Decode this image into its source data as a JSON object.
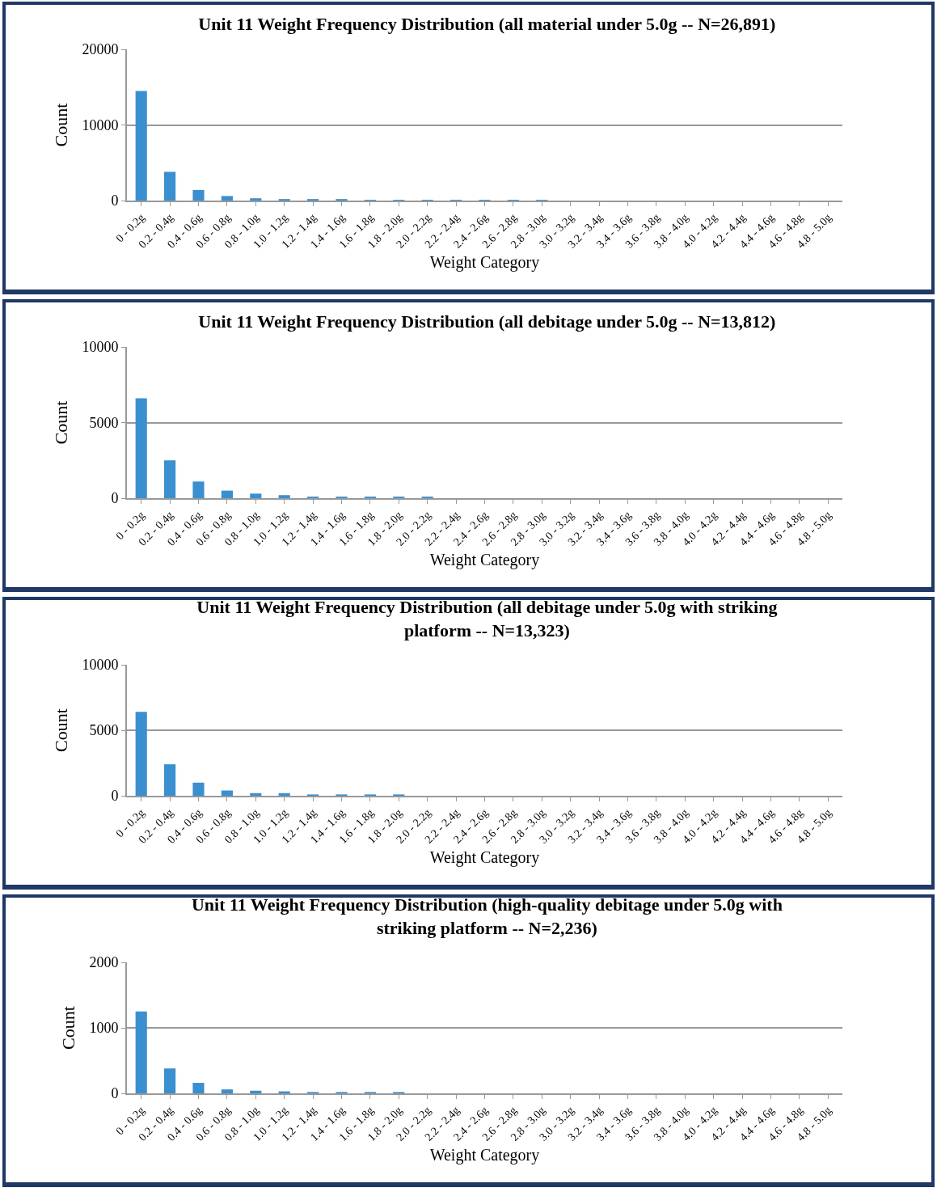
{
  "chart_data": [
    {
      "type": "bar",
      "title": "Unit 11 Weight Frequency Distribution (all material under 5.0g -- N=26,891)",
      "xlabel": "Weight Category",
      "ylabel": "Count",
      "categories": [
        "0 - 0.2g",
        "0.2 - 0.4g",
        "0.4 - 0.6g",
        "0.6 - 0.8g",
        "0.8 - 1.0g",
        "1.0 - 1.2g",
        "1.2 - 1.4g",
        "1.4 - 1.6g",
        "1.6 - 1.8g",
        "1.8 - 2.0g",
        "2.0 - 2.2g",
        "2.2 - 2.4g",
        "2.4 - 2.6g",
        "2.6 - 2.8g",
        "2.8 - 3.0g",
        "3.0 - 3.2g",
        "3.2 - 3.4g",
        "3.4 - 3.6g",
        "3.6 - 3.8g",
        "3.8 - 4.0g",
        "4.0 - 4.2g",
        "4.2 - 4.4g",
        "4.4 - 4.6g",
        "4.6 - 4.8g",
        "4.8 - 5.0g"
      ],
      "values": [
        14500,
        3800,
        1400,
        600,
        300,
        200,
        200,
        200,
        100,
        100,
        100,
        100,
        100,
        100,
        100,
        0,
        0,
        0,
        0,
        0,
        0,
        0,
        0,
        0,
        0
      ],
      "color": "#3a8fd0",
      "ylim": [
        0,
        20000
      ],
      "yticks": [
        0,
        10000,
        20000
      ],
      "grid": "y"
    },
    {
      "type": "bar",
      "title": "Unit 11 Weight Frequency Distribution (all debitage under 5.0g -- N=13,812)",
      "xlabel": "Weight Category",
      "ylabel": "Count",
      "categories": [
        "0 - 0.2g",
        "0.2 - 0.4g",
        "0.4 - 0.6g",
        "0.6 - 0.8g",
        "0.8 - 1.0g",
        "1.0 - 1.2g",
        "1.2 - 1.4g",
        "1.4 - 1.6g",
        "1.6 - 1.8g",
        "1.8 - 2.0g",
        "2.0 - 2.2g",
        "2.2 - 2.4g",
        "2.4 - 2.6g",
        "2.6 - 2.8g",
        "2.8 - 3.0g",
        "3.0 - 3.2g",
        "3.2 - 3.4g",
        "3.4 - 3.6g",
        "3.6 - 3.8g",
        "3.8 - 4.0g",
        "4.0 - 4.2g",
        "4.2 - 4.4g",
        "4.4 - 4.6g",
        "4.6 - 4.8g",
        "4.8 - 5.0g"
      ],
      "values": [
        6600,
        2500,
        1100,
        500,
        300,
        200,
        100,
        100,
        100,
        100,
        100,
        0,
        0,
        0,
        0,
        0,
        0,
        0,
        0,
        0,
        0,
        0,
        0,
        0,
        0
      ],
      "color": "#3a8fd0",
      "ylim": [
        0,
        10000
      ],
      "yticks": [
        0,
        5000,
        10000
      ],
      "grid": "y"
    },
    {
      "type": "bar",
      "title": "Unit 11 Weight Frequency Distribution (all debitage under 5.0g with striking\nplatform -- N=13,323)",
      "xlabel": "Weight Category",
      "ylabel": "Count",
      "categories": [
        "0 - 0.2g",
        "0.2 - 0.4g",
        "0.4 - 0.6g",
        "0.6 - 0.8g",
        "0.8 - 1.0g",
        "1.0 - 1.2g",
        "1.2 - 1.4g",
        "1.4 - 1.6g",
        "1.6 - 1.8g",
        "1.8 - 2.0g",
        "2.0 - 2.2g",
        "2.2 - 2.4g",
        "2.4 - 2.6g",
        "2.6 - 2.8g",
        "2.8 - 3.0g",
        "3.0 - 3.2g",
        "3.2 - 3.4g",
        "3.4 - 3.6g",
        "3.6 - 3.8g",
        "3.8 - 4.0g",
        "4.0 - 4.2g",
        "4.2 - 4.4g",
        "4.4 - 4.6g",
        "4.6 - 4.8g",
        "4.8 - 5.0g"
      ],
      "values": [
        6400,
        2400,
        1000,
        400,
        200,
        200,
        100,
        100,
        100,
        100,
        0,
        0,
        0,
        0,
        0,
        0,
        0,
        0,
        0,
        0,
        0,
        0,
        0,
        0,
        0
      ],
      "color": "#3a8fd0",
      "ylim": [
        0,
        10000
      ],
      "yticks": [
        0,
        5000,
        10000
      ],
      "grid": "y"
    },
    {
      "type": "bar",
      "title": "Unit 11 Weight Frequency Distribution (high-quality debitage under 5.0g with\nstriking platform -- N=2,236)",
      "xlabel": "Weight Category",
      "ylabel": "Count",
      "categories": [
        "0 - 0.2g",
        "0.2 - 0.4g",
        "0.4 - 0.6g",
        "0.6 - 0.8g",
        "0.8 - 1.0g",
        "1.0 - 1.2g",
        "1.2 - 1.4g",
        "1.4 - 1.6g",
        "1.6 - 1.8g",
        "1.8 - 2.0g",
        "2.0 - 2.2g",
        "2.2 - 2.4g",
        "2.4 - 2.6g",
        "2.6 - 2.8g",
        "2.8 - 3.0g",
        "3.0 - 3.2g",
        "3.2 - 3.4g",
        "3.4 - 3.6g",
        "3.6 - 3.8g",
        "3.8 - 4.0g",
        "4.0 - 4.2g",
        "4.2 - 4.4g",
        "4.4 - 4.6g",
        "4.6 - 4.8g",
        "4.8 - 5.0g"
      ],
      "values": [
        1250,
        380,
        160,
        60,
        40,
        30,
        20,
        20,
        20,
        20,
        0,
        0,
        0,
        0,
        0,
        0,
        0,
        0,
        0,
        0,
        0,
        0,
        0,
        0,
        0
      ],
      "color": "#3a8fd0",
      "ylim": [
        0,
        2000
      ],
      "yticks": [
        0,
        1000,
        2000
      ],
      "grid": "y"
    }
  ]
}
